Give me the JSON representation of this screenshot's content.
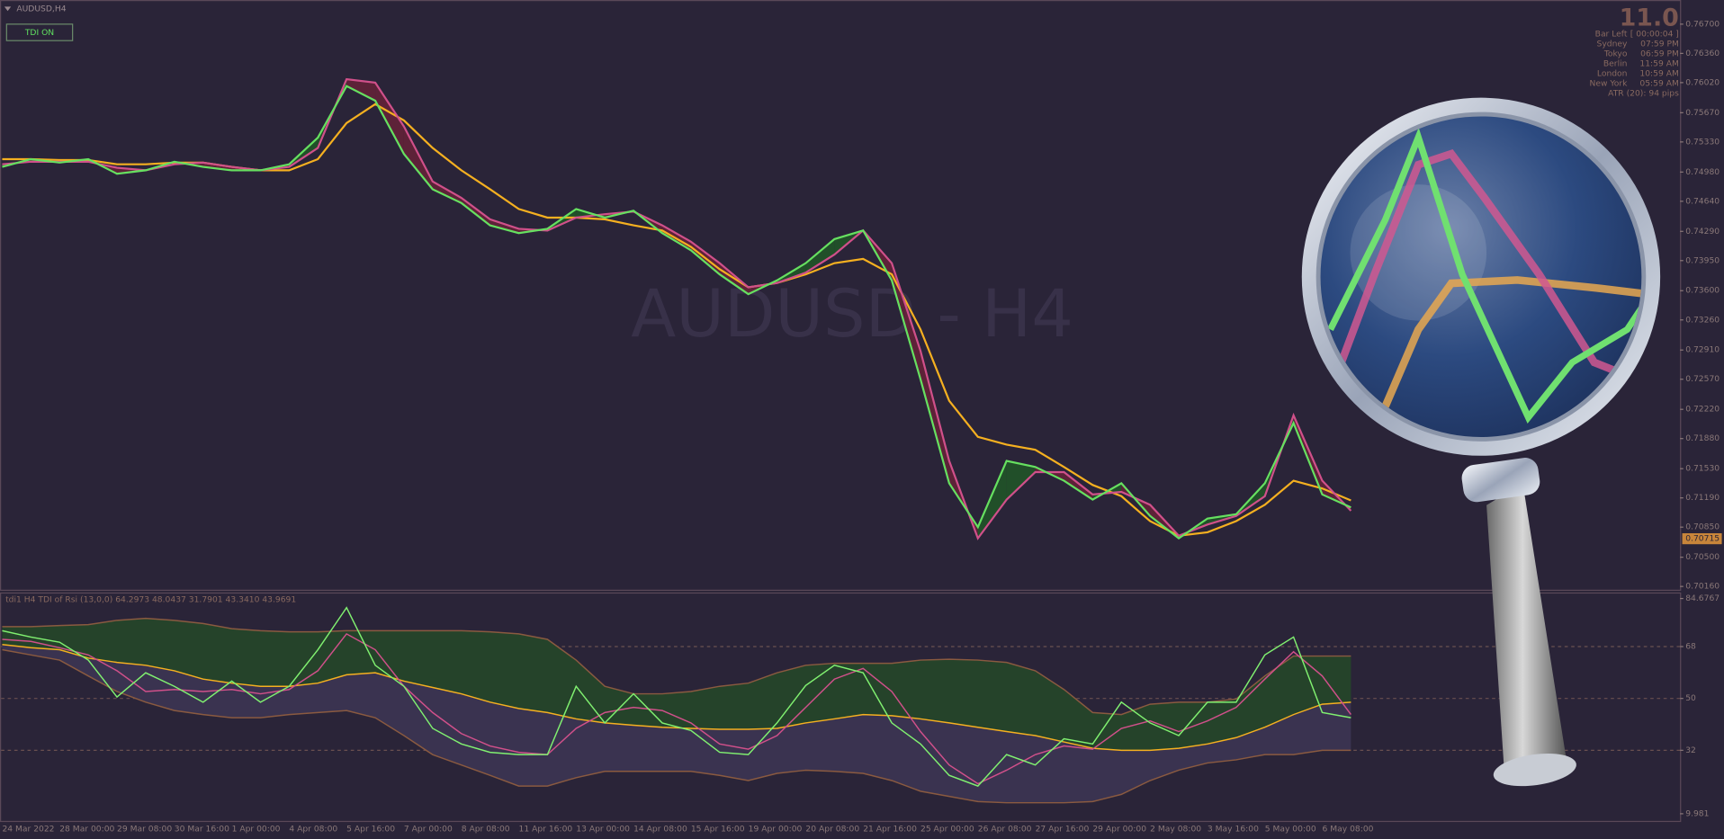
{
  "header": {
    "symbol": "AUDUSD,H4",
    "button": "TDI ON",
    "watermark": "AUDUSD - H4"
  },
  "info_panel": {
    "spread": "11.0",
    "bar_left": {
      "label": "Bar Left",
      "value": "[ 00:00:04 ]"
    },
    "sessions": [
      {
        "city": "Sydney",
        "time": "07:59 PM"
      },
      {
        "city": "Tokyo",
        "time": "06:59 PM"
      },
      {
        "city": "Berlin",
        "time": "11:59 AM"
      },
      {
        "city": "London",
        "time": "10:59 AM"
      },
      {
        "city": "New York",
        "time": "05:59 AM"
      }
    ],
    "atr": "ATR (20): 94 pips"
  },
  "chart_data": [
    {
      "type": "line",
      "ylim": [
        0.70122,
        0.76981
      ],
      "yticks": [
        {
          "value": 0.767,
          "label": "0.76700"
        },
        {
          "value": 0.7636,
          "label": "0.76360"
        },
        {
          "value": 0.7602,
          "label": "0.76020"
        },
        {
          "value": 0.7567,
          "label": "0.75670"
        },
        {
          "value": 0.7533,
          "label": "0.75330"
        },
        {
          "value": 0.7498,
          "label": "0.74980"
        },
        {
          "value": 0.7464,
          "label": "0.74640"
        },
        {
          "value": 0.7429,
          "label": "0.74290"
        },
        {
          "value": 0.7395,
          "label": "0.73950"
        },
        {
          "value": 0.736,
          "label": "0.73600"
        },
        {
          "value": 0.7326,
          "label": "0.73260"
        },
        {
          "value": 0.7291,
          "label": "0.72910"
        },
        {
          "value": 0.7257,
          "label": "0.72570"
        },
        {
          "value": 0.7222,
          "label": "0.72220"
        },
        {
          "value": 0.7188,
          "label": "0.71880"
        },
        {
          "value": 0.7153,
          "label": "0.71530"
        },
        {
          "value": 0.7119,
          "label": "0.71190"
        },
        {
          "value": 0.7085,
          "label": "0.70850"
        },
        {
          "value": 0.705,
          "label": "0.70500"
        },
        {
          "value": 0.7016,
          "label": "0.70160"
        }
      ],
      "current_price": {
        "value": 0.70715,
        "label": "0.70715"
      },
      "categories": [
        "24 Mar 2022",
        null,
        "28 Mar 00:00",
        null,
        "29 Mar 08:00",
        null,
        "30 Mar 16:00",
        null,
        "1 Apr 00:00",
        null,
        "4 Apr 08:00",
        null,
        "5 Apr 16:00",
        null,
        "7 Apr 00:00",
        null,
        "8 Apr 08:00",
        null,
        "11 Apr 16:00",
        null,
        "13 Apr 00:00",
        null,
        "14 Apr 08:00",
        null,
        "15 Apr 16:00",
        null,
        "19 Apr 00:00",
        null,
        "20 Apr 08:00",
        null,
        "21 Apr 16:00",
        null,
        "25 Apr 00:00",
        null,
        "26 Apr 08:00",
        null,
        "27 Apr 16:00",
        null,
        "29 Apr 00:00",
        null,
        "2 May 08:00",
        null,
        "3 May 16:00",
        null,
        "5 May 00:00",
        null,
        "6 May 08:00",
        null
      ],
      "cloud_colors": [
        "#1f5a25",
        "#6a2238"
      ],
      "series": [
        {
          "color": "#f5b020",
          "values": [
            0.7513,
            0.7513,
            0.7512,
            0.7512,
            0.7507,
            0.7507,
            0.7509,
            0.7509,
            0.7504,
            0.75,
            0.75,
            0.7513,
            0.7555,
            0.7577,
            0.7558,
            0.7526,
            0.75,
            0.7478,
            0.7455,
            0.7445,
            0.7445,
            0.7443,
            0.7436,
            0.743,
            0.7411,
            0.7385,
            0.7364,
            0.7369,
            0.7379,
            0.7392,
            0.7397,
            0.7379,
            0.7315,
            0.7232,
            0.719,
            0.7181,
            0.7175,
            0.7155,
            0.7134,
            0.7121,
            0.7092,
            0.7075,
            0.7079,
            0.7092,
            0.7111,
            0.7139,
            0.713,
            0.7116
          ]
        },
        {
          "color": "#d0508a",
          "values": [
            0.7507,
            0.751,
            0.751,
            0.751,
            0.7503,
            0.75,
            0.7507,
            0.7509,
            0.7504,
            0.75,
            0.7504,
            0.7526,
            0.7606,
            0.7602,
            0.7551,
            0.7487,
            0.7468,
            0.7443,
            0.7432,
            0.743,
            0.7445,
            0.7449,
            0.7452,
            0.7436,
            0.7417,
            0.7392,
            0.7364,
            0.7369,
            0.7381,
            0.7402,
            0.743,
            0.7392,
            0.729,
            0.7162,
            0.7072,
            0.7117,
            0.7149,
            0.7149,
            0.7123,
            0.7126,
            0.7111,
            0.7075,
            0.7088,
            0.7098,
            0.7121,
            0.7215,
            0.7139,
            0.7104
          ]
        },
        {
          "color": "#66e060",
          "values": [
            0.7504,
            0.7513,
            0.7509,
            0.7513,
            0.7496,
            0.75,
            0.751,
            0.7504,
            0.75,
            0.75,
            0.7507,
            0.7538,
            0.7598,
            0.7581,
            0.7519,
            0.7478,
            0.7462,
            0.7436,
            0.7427,
            0.7432,
            0.7455,
            0.7445,
            0.7453,
            0.7427,
            0.7407,
            0.7379,
            0.7356,
            0.7372,
            0.7392,
            0.742,
            0.743,
            0.7372,
            0.7257,
            0.7136,
            0.7085,
            0.7162,
            0.7155,
            0.7139,
            0.7117,
            0.7136,
            0.7098,
            0.7072,
            0.7095,
            0.71,
            0.7136,
            0.7206,
            0.7123,
            0.7108
          ]
        }
      ]
    },
    {
      "type": "line",
      "title": "tdi1 H4 TDI of Rsi (13,0,0) 64.2973 48.0437 31.7901 43.3410 43.9691",
      "ylim": [
        9.981,
        84.6767
      ],
      "yticks": [
        84.6767,
        68,
        50,
        32,
        9.981
      ],
      "band_fill": [
        "#25432a",
        "#3a3350"
      ],
      "series": [
        {
          "color": "#8a5a40",
          "values": [
            74.9,
            74.9,
            75.3,
            75.6,
            77.1,
            77.8,
            77.1,
            76.0,
            74.2,
            73.5,
            73.1,
            73.1,
            73.5,
            73.5,
            73.5,
            73.5,
            73.5,
            73.1,
            72.4,
            70.5,
            63.3,
            54.2,
            51.6,
            51.6,
            52.4,
            54.2,
            55.3,
            58.9,
            61.5,
            62.2,
            62.2,
            62.2,
            63.3,
            63.6,
            63.3,
            62.5,
            59.6,
            53.1,
            45.1,
            44.4,
            48.0,
            48.7,
            48.7,
            49.8,
            57.8,
            64.7,
            64.7,
            64.7
          ]
        },
        {
          "color": "#8a5a40",
          "values": [
            66.9,
            65.1,
            63.3,
            57.8,
            52.4,
            48.7,
            45.8,
            44.4,
            43.3,
            43.3,
            44.4,
            45.1,
            45.8,
            43.3,
            37.1,
            30.5,
            26.9,
            23.3,
            19.6,
            19.6,
            22.5,
            24.7,
            24.7,
            24.7,
            24.7,
            23.3,
            21.5,
            24.0,
            25.1,
            24.7,
            24.0,
            21.5,
            17.8,
            16.0,
            14.2,
            13.8,
            13.8,
            13.8,
            14.2,
            16.7,
            21.5,
            25.1,
            27.6,
            28.7,
            30.5,
            30.5,
            32.0,
            32.0
          ]
        },
        {
          "color": "#f5b020",
          "values": [
            68.7,
            67.6,
            66.9,
            64.0,
            62.5,
            61.5,
            59.6,
            56.7,
            55.3,
            54.2,
            54.2,
            55.3,
            58.2,
            58.9,
            56.0,
            53.8,
            51.6,
            48.7,
            46.5,
            45.1,
            42.9,
            41.5,
            40.7,
            40.0,
            39.6,
            39.3,
            39.3,
            39.6,
            41.5,
            42.9,
            44.4,
            44.0,
            42.9,
            41.5,
            40.0,
            38.5,
            37.1,
            34.9,
            32.7,
            32.0,
            32.0,
            32.7,
            34.2,
            36.4,
            40.0,
            44.4,
            48.0,
            48.7
          ]
        },
        {
          "color": "#d0508a",
          "values": [
            70.5,
            69.8,
            67.6,
            65.1,
            59.6,
            52.4,
            53.1,
            52.4,
            53.1,
            51.6,
            53.1,
            59.6,
            72.4,
            66.9,
            54.2,
            45.1,
            37.8,
            33.5,
            31.3,
            30.5,
            39.6,
            45.1,
            46.9,
            45.8,
            41.5,
            34.2,
            32.4,
            37.1,
            46.9,
            56.7,
            60.4,
            52.4,
            38.5,
            26.9,
            20.4,
            25.1,
            30.5,
            33.5,
            32.4,
            39.6,
            42.2,
            38.5,
            42.2,
            46.9,
            56.7,
            66.2,
            57.8,
            44.4
          ]
        },
        {
          "color": "#80f070",
          "values": [
            73.5,
            71.3,
            69.5,
            63.3,
            50.5,
            58.9,
            54.2,
            48.7,
            56.0,
            48.7,
            54.2,
            66.9,
            81.5,
            61.5,
            54.2,
            39.6,
            34.2,
            31.3,
            30.5,
            30.5,
            54.2,
            41.5,
            51.6,
            41.5,
            38.9,
            31.3,
            30.5,
            41.5,
            54.5,
            61.5,
            58.9,
            41.5,
            34.2,
            23.3,
            19.6,
            30.5,
            26.9,
            36.0,
            34.2,
            48.7,
            41.5,
            37.1,
            48.7,
            48.7,
            65.1,
            71.3,
            45.1,
            43.3
          ]
        }
      ]
    }
  ]
}
